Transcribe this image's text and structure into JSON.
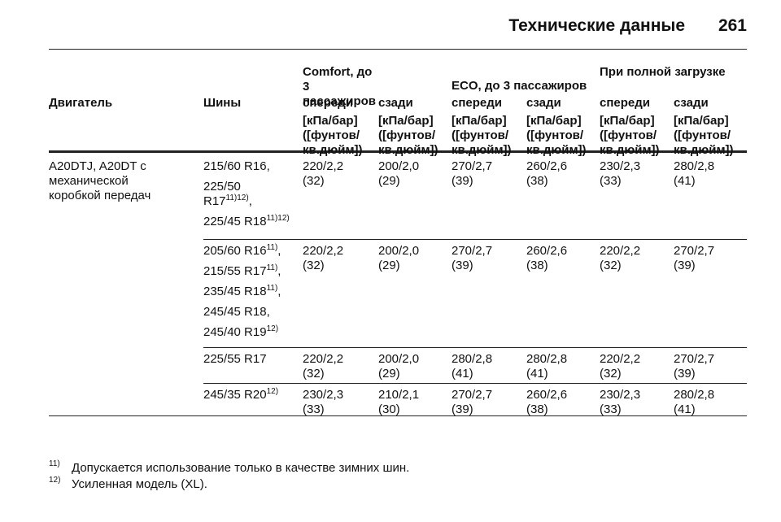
{
  "header": {
    "title": "Технические данные",
    "page": "261"
  },
  "table": {
    "groups": [
      "Comfort, до 3 пассажиров",
      "ECO, до 3 пассажиров",
      "При полной загрузке"
    ],
    "columns": [
      "Двигатель",
      "Шины",
      "спереди",
      "сзади",
      "спереди",
      "сзади",
      "спереди",
      "сзади"
    ],
    "units": [
      "[кПа/бар] ([фунтов/ кв.дюйм])",
      "[кПа/бар] ([фунтов/ кв.дюйм])",
      "[кПа/бар] ([фунтов/ кв.дюйм])",
      "[кПа/бар] ([фунтов/ кв.дюйм])",
      "[кПа/бар] ([фунтов/ кв.дюйм])",
      "[кПа/бар] ([фунтов/ кв.дюйм])"
    ],
    "rows": [
      {
        "engine": "A20DTJ, A20DT с механической коробкой передач",
        "tires": [
          {
            "text": "215/60 R16,"
          },
          {
            "text": "225/50 R17",
            "note": "11)12)",
            "end": ","
          },
          {
            "text": "225/45 R18",
            "note": "11)12)"
          }
        ],
        "cells": [
          [
            "220/2,2",
            "(32)"
          ],
          [
            "200/2,0",
            "(29)"
          ],
          [
            "270/2,7",
            "(39)"
          ],
          [
            "260/2,6",
            "(38)"
          ],
          [
            "230/2,3",
            "(33)"
          ],
          [
            "280/2,8",
            "(41)"
          ]
        ]
      },
      {
        "tires": [
          {
            "text": "205/60 R16",
            "note": "11)",
            "end": ","
          },
          {
            "text": "215/55 R17",
            "note": "11)",
            "end": ","
          },
          {
            "text": "235/45 R18",
            "note": "11)",
            "end": ","
          },
          {
            "text": "245/45 R18,"
          },
          {
            "text": "245/40 R19",
            "note": "12)"
          }
        ],
        "cells": [
          [
            "220/2,2",
            "(32)"
          ],
          [
            "200/2,0",
            "(29)"
          ],
          [
            "270/2,7",
            "(39)"
          ],
          [
            "260/2,6",
            "(38)"
          ],
          [
            "220/2,2",
            "(32)"
          ],
          [
            "270/2,7",
            "(39)"
          ]
        ]
      },
      {
        "tires": [
          {
            "text": "225/55 R17"
          }
        ],
        "cells": [
          [
            "220/2,2",
            "(32)"
          ],
          [
            "200/2,0",
            "(29)"
          ],
          [
            "280/2,8",
            "(41)"
          ],
          [
            "280/2,8",
            "(41)"
          ],
          [
            "220/2,2",
            "(32)"
          ],
          [
            "270/2,7",
            "(39)"
          ]
        ]
      },
      {
        "tires": [
          {
            "text": "245/35 R20",
            "note": "12)"
          }
        ],
        "cells": [
          [
            "230/2,3",
            "(33)"
          ],
          [
            "210/2,1",
            "(30)"
          ],
          [
            "270/2,7",
            "(39)"
          ],
          [
            "260/2,6",
            "(38)"
          ],
          [
            "230/2,3",
            "(33)"
          ],
          [
            "280/2,8",
            "(41)"
          ]
        ]
      }
    ]
  },
  "footnotes": [
    {
      "mark": "11)",
      "text": "Допускается использование только в качестве зимних шин."
    },
    {
      "mark": "12)",
      "text": "Усиленная модель (XL)."
    }
  ]
}
